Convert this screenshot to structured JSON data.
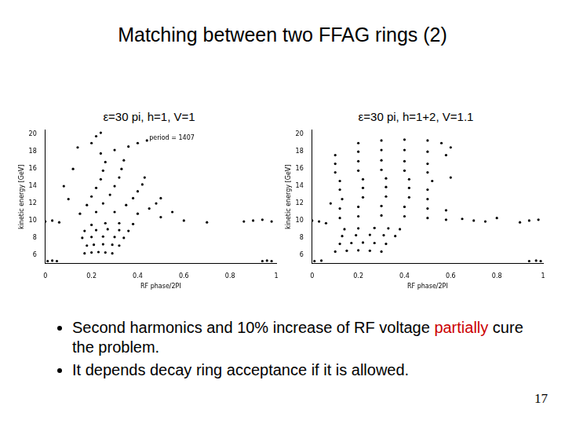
{
  "slide": {
    "title": "Matching between two FFAG rings (2)",
    "bullets": [
      [
        {
          "text": "Second harmonics and 10% increase of RF voltage "
        },
        {
          "text": "partially",
          "color": "#cc0000"
        },
        {
          "text": " cure the problem."
        }
      ],
      [
        {
          "text": "It depends decay ring acceptance if it is allowed."
        }
      ]
    ],
    "page_number": "17"
  },
  "chart_data": [
    {
      "type": "scatter",
      "title": "ε=30 pi, h=1, V=1",
      "x_label": "RF phase/2PI",
      "y_label": "kinetic energy [GeV]",
      "annotation": "period = 1407",
      "color": "#000000",
      "marker": "dot",
      "grid": false,
      "xlim": [
        0,
        1
      ],
      "xticks": [
        0,
        0.2,
        0.4,
        0.6,
        0.8,
        1
      ],
      "ylim": [
        5,
        20.5
      ],
      "yticks": [
        6,
        8,
        10,
        12,
        14,
        16,
        18,
        20
      ],
      "x": [
        0.01,
        0.03,
        0.05,
        0.94,
        0.96,
        0.98,
        0.17,
        0.2,
        0.23,
        0.26,
        0.29,
        0.18,
        0.21,
        0.25,
        0.29,
        0.32,
        0.16,
        0.2,
        0.25,
        0.3,
        0.34,
        0.17,
        0.22,
        0.27,
        0.32,
        0.36,
        0.0,
        0.03,
        0.06,
        0.86,
        0.9,
        0.94,
        0.98,
        0.2,
        0.26,
        0.32,
        0.38,
        0.15,
        0.22,
        0.3,
        0.4,
        0.5,
        0.6,
        0.7,
        0.18,
        0.25,
        0.35,
        0.45,
        0.55,
        0.2,
        0.28,
        0.38,
        0.48,
        0.22,
        0.3,
        0.4,
        0.5,
        0.24,
        0.32,
        0.42,
        0.25,
        0.33,
        0.43,
        0.26,
        0.34,
        0.24,
        0.3,
        0.36,
        0.4,
        0.44,
        0.2,
        0.22,
        0.24,
        0.08,
        0.12,
        0.1,
        0.14
      ],
      "values": [
        5.3,
        5.35,
        5.3,
        5.3,
        5.35,
        5.3,
        6.2,
        6.3,
        6.35,
        6.3,
        6.2,
        7.1,
        7.2,
        7.25,
        7.2,
        7.1,
        8.0,
        8.1,
        8.15,
        8.1,
        8.0,
        8.8,
        8.9,
        9.0,
        8.9,
        8.8,
        9.9,
        10.0,
        9.8,
        9.9,
        10.0,
        10.1,
        9.9,
        9.5,
        9.7,
        9.7,
        9.6,
        10.8,
        11.0,
        11.0,
        10.8,
        10.4,
        10.0,
        9.8,
        11.8,
        12.0,
        11.8,
        11.4,
        11.0,
        12.8,
        13.0,
        12.6,
        12.0,
        13.8,
        14.0,
        13.4,
        12.6,
        14.8,
        15.0,
        14.2,
        15.8,
        16.0,
        15.0,
        16.8,
        17.0,
        17.8,
        18.2,
        18.6,
        19.0,
        19.3,
        19.0,
        19.8,
        20.2,
        14.0,
        16.0,
        12.5,
        18.5
      ]
    },
    {
      "type": "scatter",
      "title": "ε=30 pi, h=1+2, V=1.1",
      "x_label": "RF phase/2PI",
      "y_label": "kinetic energy [GeV]",
      "color": "#000000",
      "marker": "dot",
      "grid": false,
      "xlim": [
        0,
        1
      ],
      "xticks": [
        0,
        0.2,
        0.4,
        0.6,
        0.8,
        1
      ],
      "ylim": [
        5,
        20.5
      ],
      "yticks": [
        6,
        8,
        10,
        12,
        14,
        16,
        18,
        20
      ],
      "x": [
        0.01,
        0.04,
        0.94,
        0.97,
        0.99,
        0.1,
        0.15,
        0.2,
        0.25,
        0.3,
        0.12,
        0.17,
        0.22,
        0.27,
        0.32,
        0.13,
        0.19,
        0.25,
        0.31,
        0.36,
        0.14,
        0.2,
        0.27,
        0.33,
        0.38,
        0.0,
        0.03,
        0.06,
        0.9,
        0.94,
        0.98,
        0.12,
        0.2,
        0.3,
        0.4,
        0.5,
        0.58,
        0.12,
        0.2,
        0.3,
        0.4,
        0.5,
        0.58,
        0.13,
        0.22,
        0.32,
        0.42,
        0.5,
        0.12,
        0.22,
        0.32,
        0.42,
        0.5,
        0.12,
        0.22,
        0.32,
        0.42,
        0.52,
        0.1,
        0.2,
        0.3,
        0.4,
        0.5,
        0.1,
        0.2,
        0.3,
        0.4,
        0.5,
        0.1,
        0.2,
        0.3,
        0.4,
        0.5,
        0.58,
        0.2,
        0.3,
        0.4,
        0.5,
        0.56,
        0.6,
        0.65,
        0.7,
        0.75,
        0.8,
        0.6,
        0.08
      ],
      "values": [
        5.3,
        5.35,
        5.3,
        5.35,
        5.3,
        6.4,
        6.5,
        6.55,
        6.5,
        6.4,
        7.3,
        7.4,
        7.45,
        7.4,
        7.3,
        8.2,
        8.3,
        8.35,
        8.3,
        8.2,
        9.0,
        9.1,
        9.15,
        9.1,
        9.0,
        10.0,
        9.9,
        9.7,
        9.8,
        10.0,
        10.1,
        10.3,
        10.5,
        10.6,
        10.5,
        10.3,
        10.1,
        11.4,
        11.6,
        11.7,
        11.6,
        11.4,
        11.2,
        12.5,
        12.7,
        12.8,
        12.7,
        12.5,
        13.6,
        13.8,
        13.9,
        13.8,
        13.6,
        14.6,
        14.8,
        14.9,
        14.8,
        14.6,
        15.6,
        15.8,
        15.9,
        15.8,
        15.6,
        16.6,
        16.9,
        17.0,
        16.9,
        16.6,
        17.6,
        18.0,
        18.2,
        18.2,
        18.0,
        17.6,
        19.0,
        19.3,
        19.4,
        19.3,
        19.0,
        18.5,
        10.2,
        10.0,
        9.9,
        10.3,
        15.0,
        12.0
      ]
    }
  ]
}
